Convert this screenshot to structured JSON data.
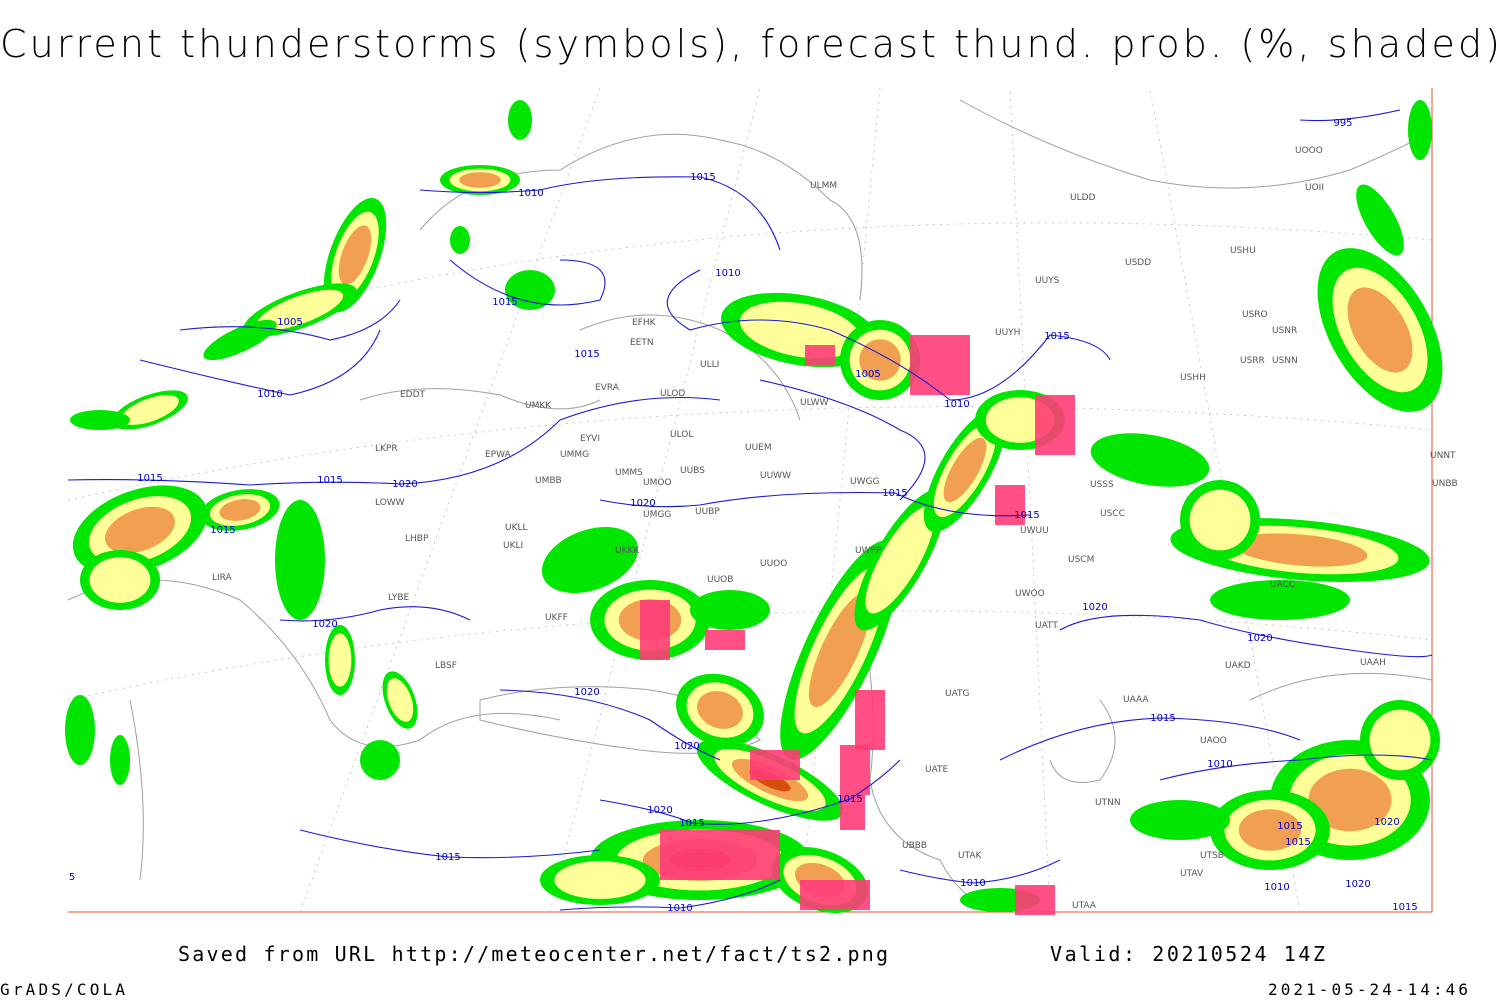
{
  "title": "Current thunderstorms (symbols), forecast thund. prob. (%, shaded)",
  "footer": {
    "saved": "Saved from URL http://meteocenter.net/fact/ts2.png",
    "valid": "Valid: 20210524 14Z",
    "software": "GrADS/COLA",
    "timestamp": "2021-05-24-14:46"
  },
  "stations": [
    "ULMM",
    "ULDD",
    "USDD",
    "USHH",
    "UUYS",
    "UUYH",
    "EFHK",
    "EETN",
    "EVRA",
    "ULLI",
    "ULOD",
    "EDDT",
    "UMKK",
    "ULOL",
    "EYVI",
    "EPWA",
    "UMMG",
    "LKPR",
    "UUEM",
    "UMMS",
    "UUBS",
    "UUWW",
    "UMBB",
    "UWGG",
    "UMOO",
    "LOWW",
    "UMGG",
    "UUBP",
    "LHBP",
    "UKLL",
    "UKLI",
    "UKKK",
    "UUOO",
    "UWPP",
    "LIRA",
    "LYBE",
    "UUOB",
    "UKFF",
    "LBSF",
    "UATG",
    "UATT",
    "UWOO",
    "USCM",
    "USCC",
    "UAAA",
    "UACC",
    "UAKD",
    "UAAH",
    "UAOO",
    "UATE",
    "UTAA",
    "UTAK",
    "UBBB",
    "USSS",
    "USRR",
    "USNN",
    "USRO",
    "USNR",
    "USHU",
    "UOOO",
    "UOII",
    "UNNT",
    "UNBB",
    "UTSB",
    "UTAV",
    "UTNN",
    "UWUU",
    "ULWW"
  ],
  "isobar_labels": [
    "1010",
    "1015",
    "1010",
    "1015",
    "1005",
    "1010",
    "1015",
    "1005",
    "1010",
    "1015",
    "1015",
    "1015",
    "1020",
    "1015",
    "1020",
    "1015",
    "1015",
    "1020",
    "1020",
    "1020",
    "1020",
    "1020",
    "1015",
    "1010",
    "1015",
    "1020",
    "1015",
    "1015",
    "1010",
    "1010",
    "1015",
    "1020",
    "1015",
    "1010",
    "1020",
    "1015",
    "995",
    "5"
  ]
}
